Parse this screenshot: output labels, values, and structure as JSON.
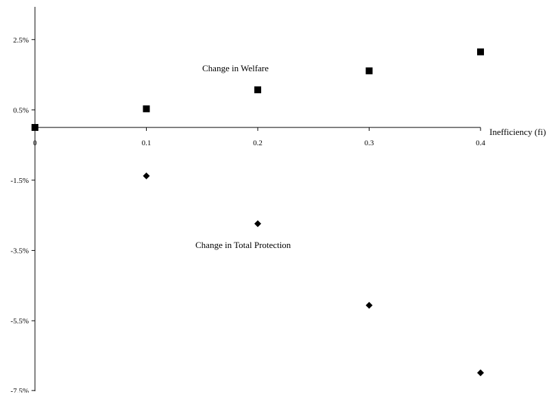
{
  "chart_data": {
    "type": "scatter",
    "title": "",
    "xlabel": "Inefficiency (fi)",
    "ylabel": "",
    "xlim": [
      0,
      0.4
    ],
    "ylim": [
      -0.075,
      0.035
    ],
    "x_ticks": [
      0,
      0.1,
      0.2,
      0.3,
      0.4
    ],
    "x_tick_labels": [
      "0",
      "0.1",
      "0.2",
      "0.3",
      "0.4"
    ],
    "y_ticks": [
      0.025,
      0.005,
      -0.015,
      -0.035,
      -0.055,
      -0.075
    ],
    "y_tick_labels": [
      "2.5%",
      "0.5%",
      "-1.5%",
      "-3.5%",
      "-5.5%",
      "-7.5%"
    ],
    "grid": false,
    "legend": "none",
    "series": [
      {
        "name": "Change in Welfare",
        "marker": "square",
        "color": "#000000",
        "points": [
          {
            "x": 0,
            "y": 0.0
          },
          {
            "x": 0.1,
            "y": 0.0053
          },
          {
            "x": 0.2,
            "y": 0.0107
          },
          {
            "x": 0.3,
            "y": 0.0161
          },
          {
            "x": 0.4,
            "y": 0.0215
          }
        ]
      },
      {
        "name": "Change in Total Protection",
        "marker": "diamond",
        "color": "#000000",
        "points": [
          {
            "x": 0.1,
            "y": -0.0138
          },
          {
            "x": 0.2,
            "y": -0.0274
          },
          {
            "x": 0.3,
            "y": -0.0506
          },
          {
            "x": 0.4,
            "y": -0.0698
          }
        ]
      }
    ],
    "annotations": [
      {
        "text": "Change in Welfare",
        "series": 0
      },
      {
        "text": "Change in Total Protection",
        "series": 1
      }
    ]
  }
}
